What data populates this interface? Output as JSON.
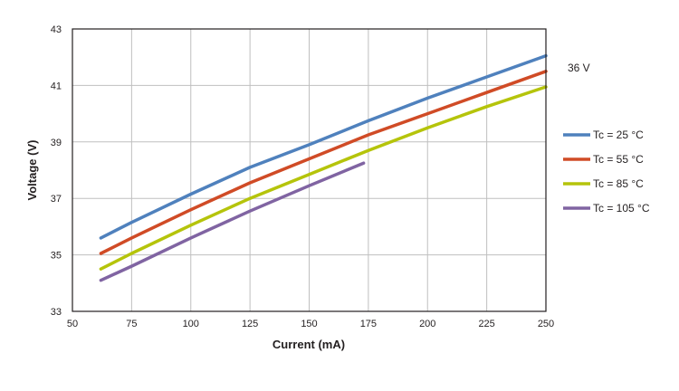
{
  "chart_data": {
    "type": "line",
    "xlabel": "Current (mA)",
    "ylabel": "Voltage (V)",
    "xlim": [
      50,
      250
    ],
    "ylim": [
      33,
      43
    ],
    "xticks": [
      50,
      75,
      100,
      125,
      150,
      175,
      200,
      225,
      250
    ],
    "yticks": [
      33,
      35,
      37,
      39,
      41,
      43
    ],
    "grid": true,
    "legend_placement": "right",
    "annotation": "36 V",
    "series": [
      {
        "name": "Tc = 25 °C",
        "color": "#4f81bd",
        "x": [
          62,
          75,
          100,
          125,
          150,
          175,
          200,
          225,
          250
        ],
        "y": [
          35.6,
          36.15,
          37.15,
          38.1,
          38.9,
          39.75,
          40.55,
          41.3,
          42.05
        ]
      },
      {
        "name": "Tc = 55 °C",
        "color": "#d04b26",
        "x": [
          62,
          75,
          100,
          125,
          150,
          175,
          200,
          225,
          250
        ],
        "y": [
          35.05,
          35.6,
          36.6,
          37.55,
          38.4,
          39.25,
          40.0,
          40.75,
          41.5
        ]
      },
      {
        "name": "Tc = 85 °C",
        "color": "#b5c40b",
        "x": [
          62,
          75,
          100,
          125,
          150,
          175,
          200,
          225,
          250
        ],
        "y": [
          34.5,
          35.05,
          36.05,
          37.0,
          37.85,
          38.7,
          39.5,
          40.25,
          40.95
        ]
      },
      {
        "name": "Tc = 105 °C",
        "color": "#8064a2",
        "x": [
          62,
          75,
          100,
          125,
          150,
          173
        ],
        "y": [
          34.1,
          34.6,
          35.6,
          36.55,
          37.45,
          38.25
        ]
      }
    ]
  }
}
